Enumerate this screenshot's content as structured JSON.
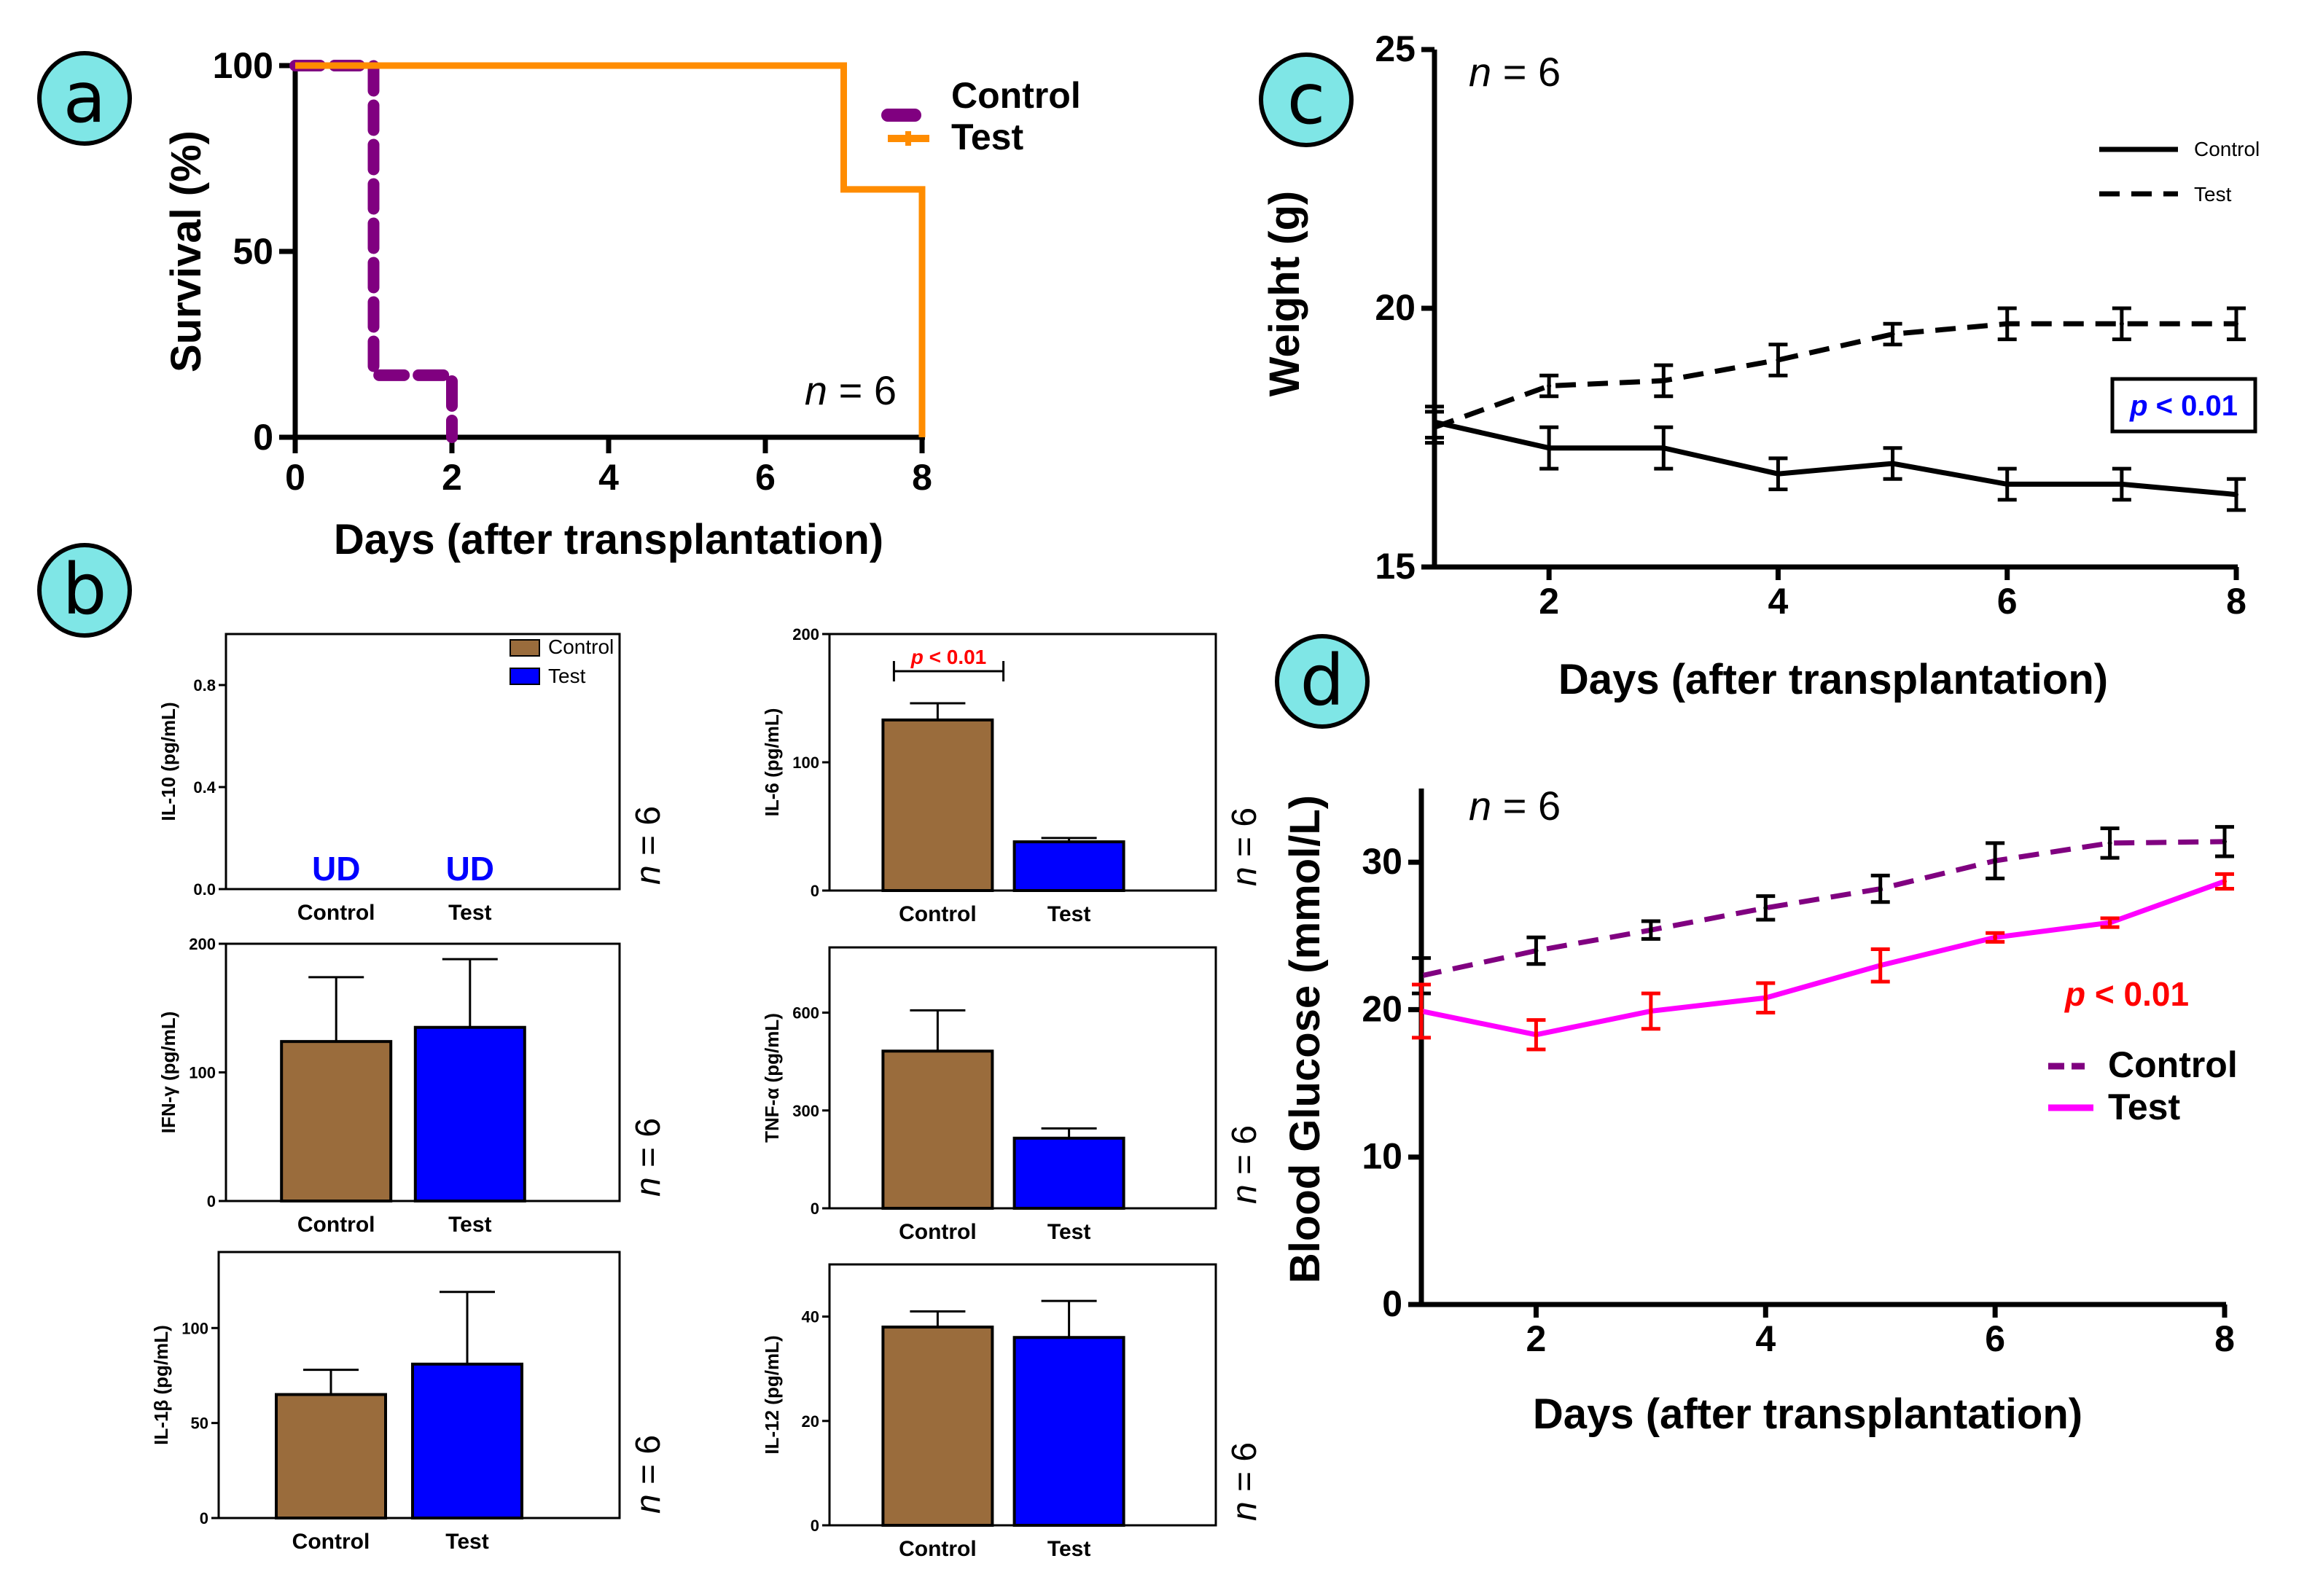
{
  "colors": {
    "label_circle": "#7fe6e6",
    "control_purple": "#800080",
    "test_orange": "#ff8c00",
    "bar_brown": "#9a6c3c",
    "bar_blue": "#0000ff",
    "ud_blue": "#0000ff",
    "p_red": "#ff0000",
    "p_blue": "#0000ff",
    "test_magenta": "#ff00ff"
  },
  "panel_labels": [
    "a",
    "b",
    "c",
    "d"
  ],
  "chart_data": [
    {
      "panel": "a",
      "type": "line",
      "title": "",
      "xlabel": "Days (after transplantation)",
      "ylabel": "Survival (%)",
      "xlim": [
        0,
        8
      ],
      "ylim": [
        0,
        100
      ],
      "xticks": [
        "0",
        "2",
        "4",
        "6",
        "8"
      ],
      "yticks": [
        "0",
        "50",
        "100"
      ],
      "annotation": "n = 6",
      "legend": [
        "Control",
        "Test"
      ],
      "series": [
        {
          "name": "Control",
          "style": "dashed-step",
          "color": "#800080",
          "x": [
            0,
            1,
            1,
            2,
            2
          ],
          "y": [
            100,
            100,
            16.7,
            16.7,
            0
          ]
        },
        {
          "name": "Test",
          "style": "solid-step",
          "color": "#ff8c00",
          "x": [
            0,
            7,
            7,
            8,
            8
          ],
          "y": [
            100,
            100,
            66.7,
            66.7,
            0
          ]
        }
      ]
    },
    {
      "panel": "b",
      "type": "bar",
      "legend": [
        "Control",
        "Test"
      ],
      "subplots": [
        {
          "id": "il10",
          "ylabel": "IL-10 (pg/mL)",
          "categories": [
            "Control",
            "Test"
          ],
          "values": [
            0,
            0
          ],
          "errors": [
            0,
            0
          ],
          "ylim": [
            0,
            1.0
          ],
          "yticks": [
            "0.0",
            "0.4",
            "0.8"
          ],
          "bar_labels": [
            "UD",
            "UD"
          ],
          "n": "n = 6"
        },
        {
          "id": "il6",
          "ylabel": "IL-6 (pg/mL)",
          "categories": [
            "Control",
            "Test"
          ],
          "values": [
            133,
            38
          ],
          "errors": [
            13,
            3
          ],
          "ylim": [
            0,
            200
          ],
          "yticks": [
            "0",
            "100",
            "200"
          ],
          "significance": "p < 0.01",
          "n": "n = 6"
        },
        {
          "id": "ifng",
          "ylabel": "IFN-γ (pg/mL)",
          "categories": [
            "Control",
            "Test"
          ],
          "values": [
            124,
            135
          ],
          "errors": [
            50,
            53
          ],
          "ylim": [
            0,
            200
          ],
          "yticks": [
            "0",
            "100",
            "200"
          ],
          "n": "n = 6"
        },
        {
          "id": "tnfa",
          "ylabel": "TNF-α (pg/mL)",
          "categories": [
            "Control",
            "Test"
          ],
          "values": [
            482,
            215
          ],
          "errors": [
            125,
            30
          ],
          "ylim": [
            0,
            800
          ],
          "yticks": [
            "0",
            "300",
            "600"
          ],
          "n": "n = 6"
        },
        {
          "id": "il1b",
          "ylabel": "IL-1β (pg/mL)",
          "categories": [
            "Control",
            "Test"
          ],
          "values": [
            65,
            81
          ],
          "errors": [
            13,
            38
          ],
          "ylim": [
            0,
            140
          ],
          "yticks": [
            "0",
            "50",
            "100"
          ],
          "n": "n = 6"
        },
        {
          "id": "il12",
          "ylabel": "IL-12 (pg/mL)",
          "categories": [
            "Control",
            "Test"
          ],
          "values": [
            38,
            36
          ],
          "errors": [
            3,
            7
          ],
          "ylim": [
            0,
            50
          ],
          "yticks": [
            "0",
            "20",
            "40"
          ],
          "n": "n = 6"
        }
      ]
    },
    {
      "panel": "c",
      "type": "line",
      "xlabel": "Days (after transplantation)",
      "ylabel": "Weight (g)",
      "xlim": [
        1,
        8
      ],
      "ylim": [
        15,
        25
      ],
      "xticks": [
        "2",
        "4",
        "6",
        "8"
      ],
      "yticks": [
        "15",
        "20",
        "25"
      ],
      "annotation": "n = 6",
      "pvalue": "p < 0.01",
      "legend": [
        "Control",
        "Test"
      ],
      "series": [
        {
          "name": "Control",
          "style": "solid",
          "color": "#000000",
          "x": [
            1,
            2,
            3,
            4,
            5,
            6,
            7,
            8
          ],
          "y": [
            17.8,
            17.3,
            17.3,
            16.8,
            17.0,
            16.6,
            16.6,
            16.4
          ],
          "err": [
            0.3,
            0.4,
            0.4,
            0.3,
            0.3,
            0.3,
            0.3,
            0.3
          ]
        },
        {
          "name": "Test",
          "style": "dashed",
          "color": "#000000",
          "x": [
            1,
            2,
            3,
            4,
            5,
            6,
            7,
            8
          ],
          "y": [
            17.7,
            18.5,
            18.6,
            19.0,
            19.5,
            19.7,
            19.7,
            19.7
          ],
          "err": [
            0.3,
            0.2,
            0.3,
            0.3,
            0.2,
            0.3,
            0.3,
            0.3
          ]
        }
      ]
    },
    {
      "panel": "d",
      "type": "line",
      "xlabel": "Days (after transplantation)",
      "ylabel": "Blood Glucose (mmol/L)",
      "xlim": [
        1,
        8
      ],
      "ylim": [
        0,
        35
      ],
      "xticks": [
        "2",
        "4",
        "6",
        "8"
      ],
      "yticks": [
        "0",
        "10",
        "20",
        "30"
      ],
      "annotation": "n = 6",
      "pvalue": "p < 0.01",
      "legend": [
        "Control",
        "Test"
      ],
      "series": [
        {
          "name": "Control",
          "style": "dashed",
          "color": "#800080",
          "x": [
            1,
            2,
            3,
            4,
            5,
            6,
            7,
            8
          ],
          "y": [
            22.3,
            24.0,
            25.4,
            26.9,
            28.2,
            30.1,
            31.3,
            31.4
          ],
          "err": [
            1.2,
            0.9,
            0.6,
            0.8,
            0.9,
            1.2,
            1.0,
            1.0
          ]
        },
        {
          "name": "Test",
          "style": "solid",
          "color": "#ff00ff",
          "x": [
            1,
            2,
            3,
            4,
            5,
            6,
            7,
            8
          ],
          "y": [
            19.9,
            18.3,
            19.9,
            20.8,
            23.0,
            24.9,
            25.9,
            28.7
          ],
          "err": [
            1.8,
            1.0,
            1.2,
            1.0,
            1.1,
            0.3,
            0.3,
            0.5
          ]
        }
      ]
    }
  ]
}
